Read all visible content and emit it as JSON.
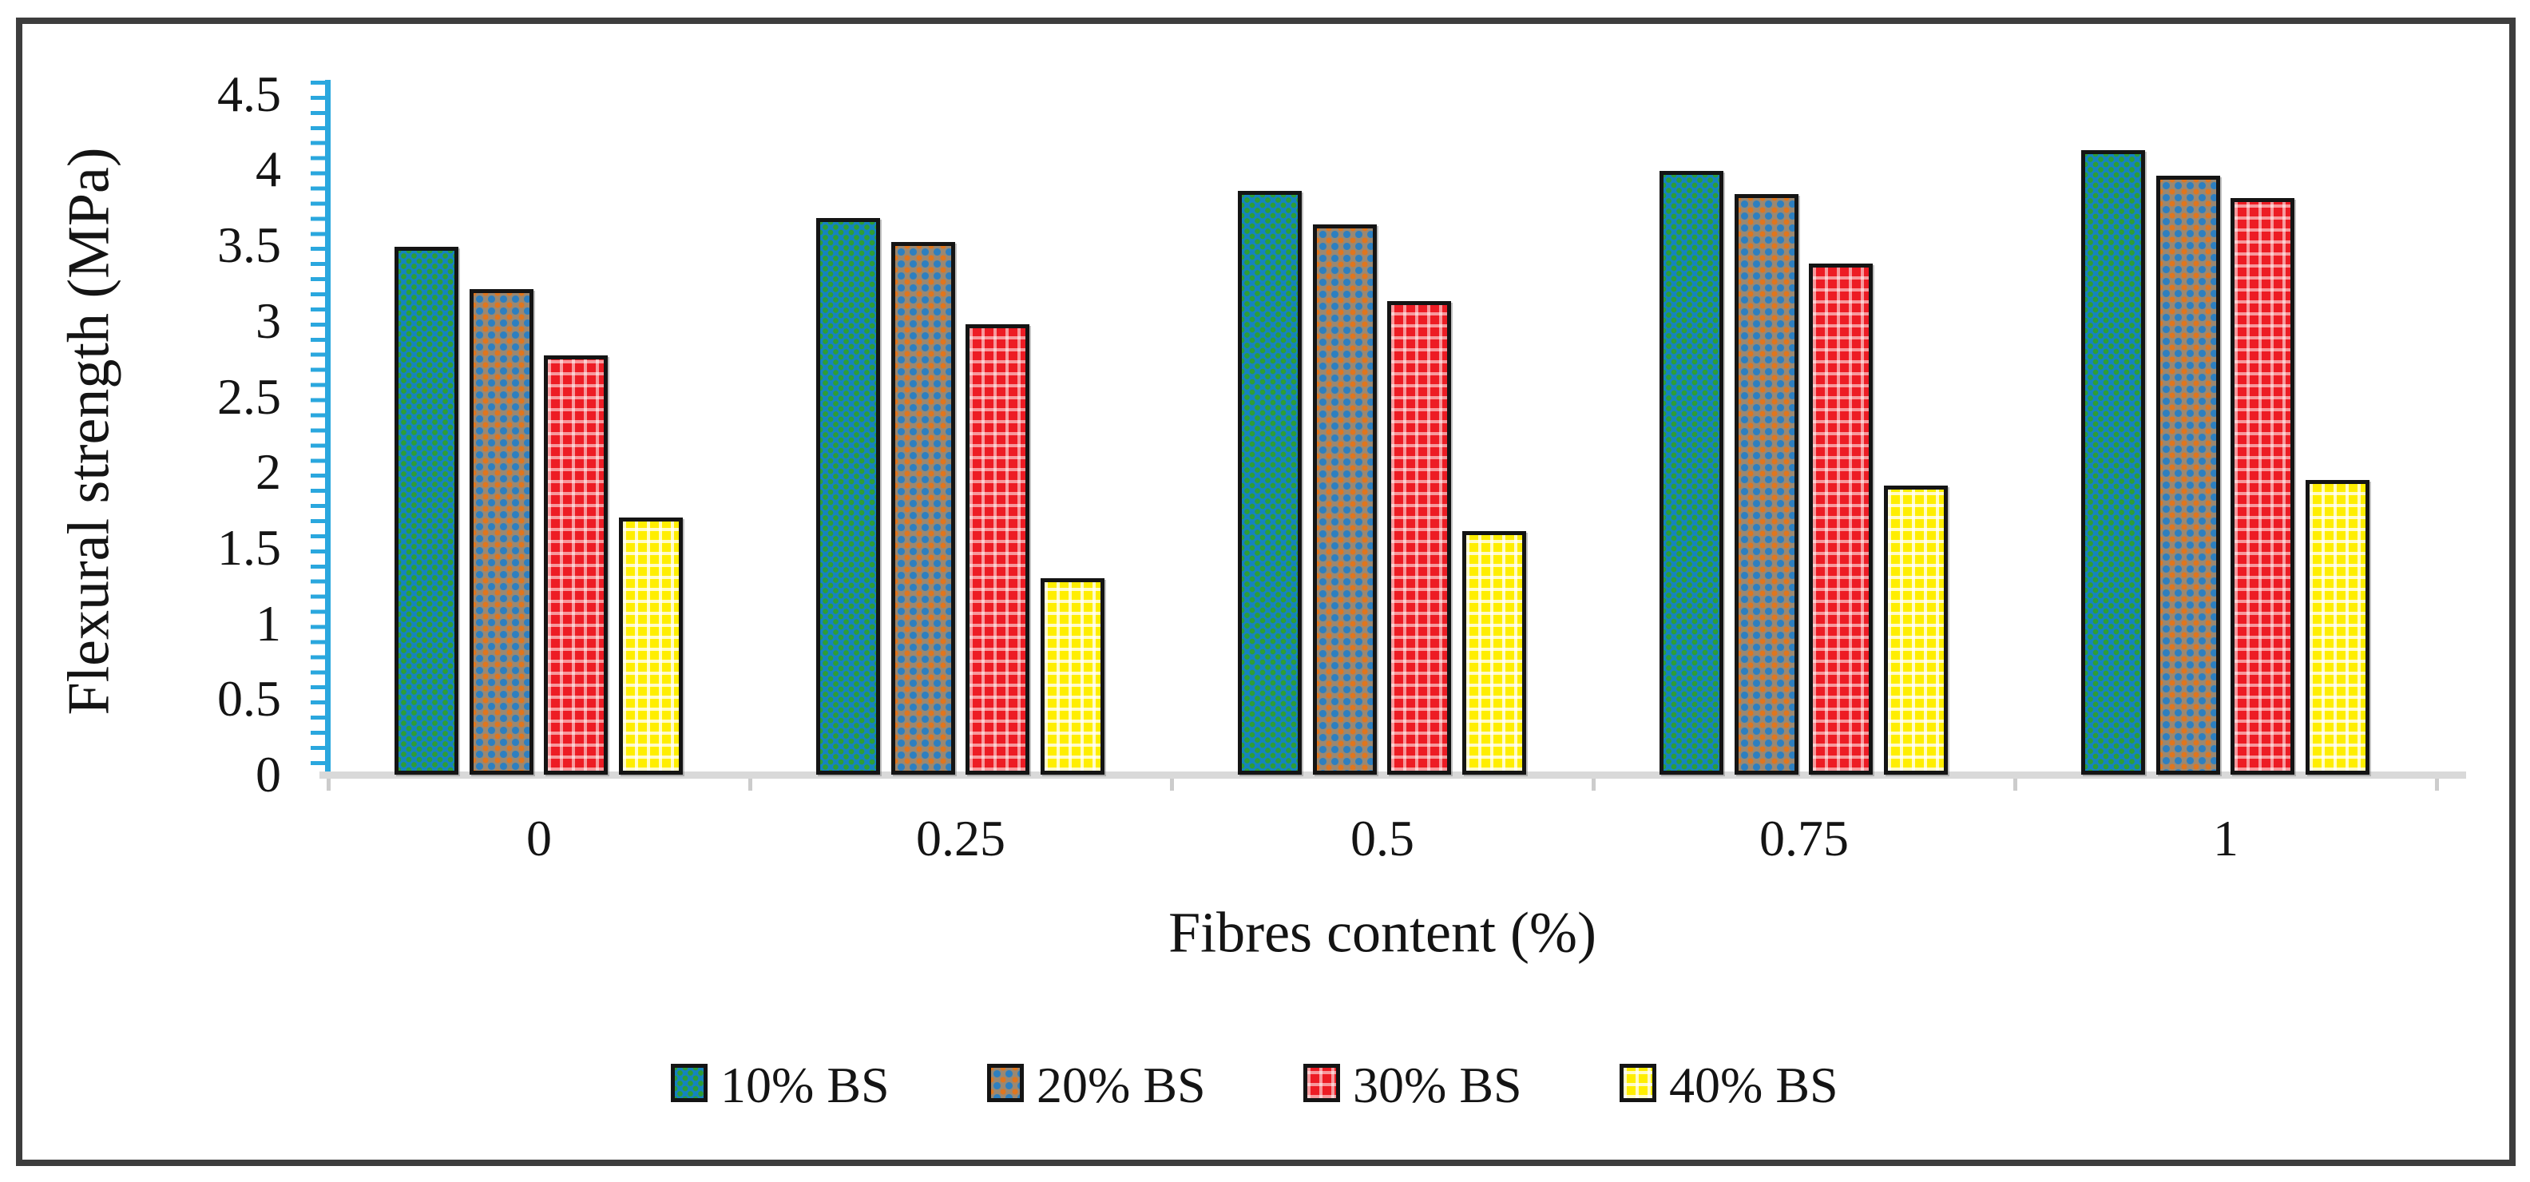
{
  "figure": {
    "background": "#ffffff",
    "frame_color": "#3d3d3d"
  },
  "y_axis": {
    "title": "Flexural strength (MPa)",
    "tick_labels": [
      "4.5",
      "4",
      "3.5",
      "3",
      "2.5",
      "2",
      "1.5",
      "1",
      "0.5",
      "0"
    ],
    "axis_color": "#2aa7de"
  },
  "x_axis": {
    "title": "Fibres content (%)",
    "tick_labels": [
      "0",
      "0.25",
      "0.5",
      "0.75",
      "1"
    ],
    "axis_color": "#d9d9d9"
  },
  "legend": {
    "items": [
      {
        "label": "10% BS",
        "swatch": "teal-dotted"
      },
      {
        "label": "20% BS",
        "swatch": "gray-blue-orange-crosshatch"
      },
      {
        "label": "30% BS",
        "swatch": "red-white-check"
      },
      {
        "label": "40% BS",
        "swatch": "yellow-white-check"
      }
    ]
  },
  "chart_data": {
    "type": "bar",
    "title": "",
    "categories": [
      "0",
      "0.25",
      "0.5",
      "0.75",
      "1"
    ],
    "xlabel": "Fibres content (%)",
    "ylabel": "Flexural strength (MPa)",
    "ylim": [
      0,
      4.5
    ],
    "ytick_step": 0.5,
    "grid": false,
    "legend_position": "bottom",
    "series": [
      {
        "name": "10% BS",
        "pattern": "blue-with-green-dots",
        "color_main": "#1583bf",
        "color_accent": "#2e9e35",
        "values": [
          3.49,
          3.68,
          3.86,
          3.99,
          4.13
        ]
      },
      {
        "name": "20% BS",
        "pattern": "gray-with-blue-orange-cross",
        "color_main": "#9b8871",
        "color_accent": "#2d7fc0",
        "values": [
          3.21,
          3.52,
          3.64,
          3.84,
          3.96
        ]
      },
      {
        "name": "30% BS",
        "pattern": "red-with-white-check",
        "color_main": "#ed1c24",
        "color_accent": "#ffffff",
        "values": [
          2.77,
          2.98,
          3.13,
          3.38,
          3.81
        ]
      },
      {
        "name": "40% BS",
        "pattern": "yellow-with-white-check",
        "color_main": "#ffee00",
        "color_accent": "#ffffff",
        "values": [
          1.7,
          1.3,
          1.61,
          1.91,
          1.95
        ]
      }
    ]
  }
}
